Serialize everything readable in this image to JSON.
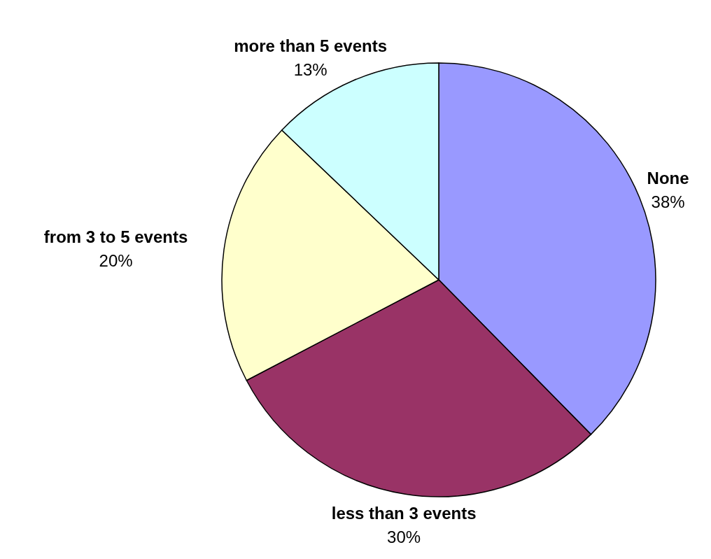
{
  "chart_data": {
    "type": "pie",
    "categories": [
      "None",
      "less than 3 events",
      "from 3 to 5 events",
      "more than 5 events"
    ],
    "values": [
      38,
      30,
      20,
      13
    ],
    "colors": [
      "#9999ff",
      "#993366",
      "#ffffcc",
      "#ccffff"
    ],
    "value_labels": [
      "38%",
      "30%",
      "20%",
      "13%"
    ],
    "legend": false
  }
}
